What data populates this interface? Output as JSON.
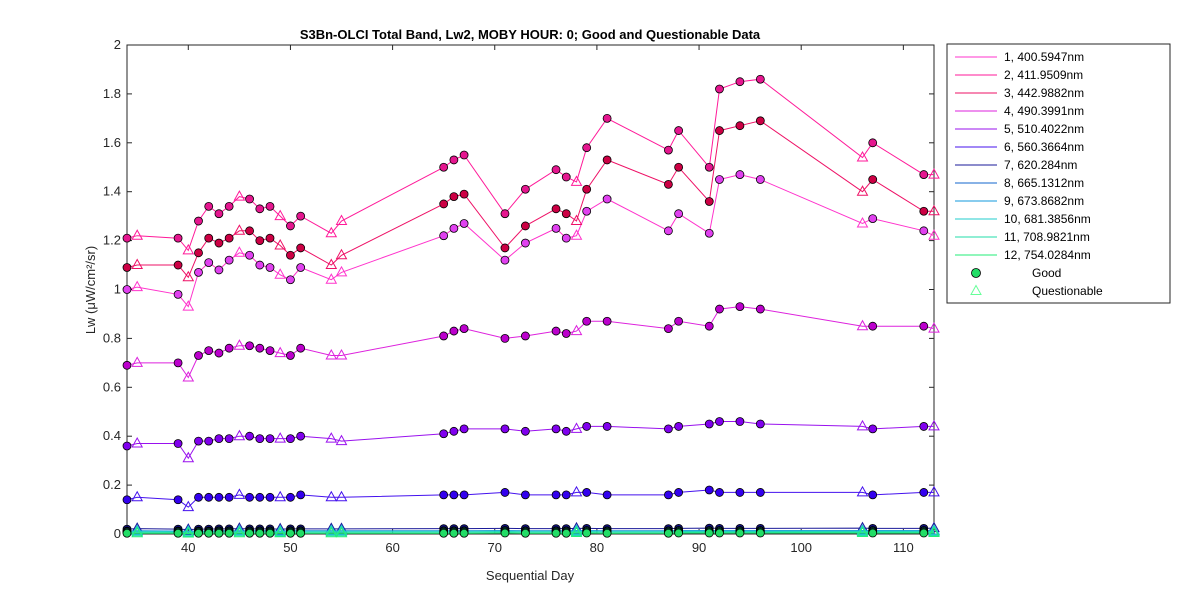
{
  "chart_data": {
    "type": "scatter",
    "title": "S3Bn-OLCI Total Band,  Lw2, MOBY HOUR: 0;  Good and Questionable Data",
    "xlabel": "Sequential Day",
    "ylabel": "Lw (μW/cm²/sr)",
    "xlim": [
      34,
      113
    ],
    "ylim": [
      0,
      2
    ],
    "xticks": [
      40,
      50,
      60,
      70,
      80,
      90,
      100,
      110
    ],
    "yticks": [
      0,
      0.2,
      0.4,
      0.6,
      0.8,
      1,
      1.2,
      1.4,
      1.6,
      1.8,
      2
    ],
    "xtick_labels": [
      "40",
      "50",
      "60",
      "70",
      "80",
      "90",
      "100",
      "110"
    ],
    "ytick_labels": [
      "0",
      "0.2",
      "0.4",
      "0.6",
      "0.8",
      "1",
      "1.2",
      "1.4",
      "1.6",
      "1.8",
      "2"
    ],
    "grid": false,
    "legend_position": "outside-right",
    "x": [
      34,
      35,
      39,
      40,
      41,
      42,
      43,
      44,
      45,
      46,
      47,
      48,
      49,
      50,
      51,
      54,
      55,
      65,
      66,
      67,
      71,
      73,
      76,
      77,
      78,
      79,
      81,
      87,
      88,
      91,
      92,
      94,
      96,
      106,
      107,
      112,
      113
    ],
    "questionable_mask": [
      0,
      1,
      0,
      1,
      0,
      0,
      0,
      0,
      1,
      0,
      0,
      0,
      1,
      0,
      0,
      1,
      1,
      0,
      0,
      0,
      0,
      0,
      0,
      0,
      1,
      0,
      0,
      0,
      0,
      0,
      0,
      0,
      0,
      1,
      0,
      0,
      1
    ],
    "series": [
      {
        "name": "1, 400.5947nm",
        "color": "#ff33cc",
        "fill": "#e040ef",
        "values": [
          1.0,
          1.01,
          0.98,
          0.93,
          1.07,
          1.11,
          1.08,
          1.12,
          1.15,
          1.14,
          1.1,
          1.09,
          1.06,
          1.04,
          1.09,
          1.04,
          1.07,
          1.22,
          1.25,
          1.27,
          1.12,
          1.19,
          1.25,
          1.21,
          1.22,
          1.32,
          1.37,
          1.24,
          1.31,
          1.23,
          1.45,
          1.47,
          1.45,
          1.27,
          1.29,
          1.24,
          1.22
        ]
      },
      {
        "name": "2, 411.9509nm",
        "color": "#ff1a99",
        "fill": "#e5168f",
        "values": [
          1.21,
          1.22,
          1.21,
          1.16,
          1.28,
          1.34,
          1.31,
          1.34,
          1.38,
          1.37,
          1.33,
          1.34,
          1.3,
          1.26,
          1.3,
          1.23,
          1.28,
          1.5,
          1.53,
          1.55,
          1.31,
          1.41,
          1.49,
          1.46,
          1.44,
          1.58,
          1.7,
          1.57,
          1.65,
          1.5,
          1.82,
          1.85,
          1.86,
          1.54,
          1.6,
          1.47,
          1.47
        ]
      },
      {
        "name": "3, 442.9882nm",
        "color": "#ee1166",
        "fill": "#cc0044",
        "values": [
          1.09,
          1.1,
          1.1,
          1.05,
          1.15,
          1.21,
          1.19,
          1.21,
          1.24,
          1.24,
          1.2,
          1.21,
          1.18,
          1.14,
          1.17,
          1.1,
          1.14,
          1.35,
          1.38,
          1.39,
          1.17,
          1.26,
          1.33,
          1.31,
          1.28,
          1.41,
          1.53,
          1.43,
          1.5,
          1.36,
          1.65,
          1.67,
          1.69,
          1.4,
          1.45,
          1.32,
          1.32
        ]
      },
      {
        "name": "4, 490.3991nm",
        "color": "#dd22dd",
        "fill": "#bb00cc",
        "values": [
          0.69,
          0.7,
          0.7,
          0.64,
          0.73,
          0.75,
          0.74,
          0.76,
          0.77,
          0.77,
          0.76,
          0.75,
          0.74,
          0.73,
          0.76,
          0.73,
          0.73,
          0.81,
          0.83,
          0.84,
          0.8,
          0.81,
          0.83,
          0.82,
          0.83,
          0.87,
          0.87,
          0.84,
          0.87,
          0.85,
          0.92,
          0.93,
          0.92,
          0.85,
          0.85,
          0.85,
          0.84
        ]
      },
      {
        "name": "5, 510.4022nm",
        "color": "#9911ee",
        "fill": "#8000ee",
        "values": [
          0.36,
          0.37,
          0.37,
          0.31,
          0.38,
          0.38,
          0.39,
          0.39,
          0.4,
          0.4,
          0.39,
          0.39,
          0.39,
          0.39,
          0.4,
          0.39,
          0.38,
          0.41,
          0.42,
          0.43,
          0.43,
          0.42,
          0.43,
          0.42,
          0.43,
          0.44,
          0.44,
          0.43,
          0.44,
          0.45,
          0.46,
          0.46,
          0.45,
          0.44,
          0.43,
          0.44,
          0.44
        ]
      },
      {
        "name": "6, 560.3664nm",
        "color": "#4411ee",
        "fill": "#3300ee",
        "values": [
          0.14,
          0.15,
          0.14,
          0.11,
          0.15,
          0.15,
          0.15,
          0.15,
          0.16,
          0.15,
          0.15,
          0.15,
          0.15,
          0.15,
          0.16,
          0.15,
          0.15,
          0.16,
          0.16,
          0.16,
          0.17,
          0.16,
          0.16,
          0.16,
          0.17,
          0.17,
          0.16,
          0.16,
          0.17,
          0.18,
          0.17,
          0.17,
          0.17,
          0.17,
          0.16,
          0.17,
          0.17
        ]
      },
      {
        "name": "7,  620.284nm",
        "color": "#1a1a99",
        "fill": "#111188",
        "values": [
          0.02,
          0.022,
          0.02,
          0.018,
          0.02,
          0.02,
          0.021,
          0.021,
          0.022,
          0.021,
          0.021,
          0.021,
          0.02,
          0.021,
          0.021,
          0.021,
          0.021,
          0.022,
          0.022,
          0.022,
          0.023,
          0.022,
          0.022,
          0.022,
          0.023,
          0.023,
          0.022,
          0.022,
          0.023,
          0.024,
          0.023,
          0.023,
          0.023,
          0.024,
          0.023,
          0.023,
          0.024
        ]
      },
      {
        "name": "8,  665.1312nm",
        "color": "#1166cc",
        "fill": "#1155bb",
        "values": [
          0.012,
          0.013,
          0.012,
          0.011,
          0.012,
          0.012,
          0.013,
          0.013,
          0.013,
          0.013,
          0.013,
          0.013,
          0.012,
          0.013,
          0.013,
          0.013,
          0.013,
          0.013,
          0.013,
          0.013,
          0.014,
          0.013,
          0.013,
          0.013,
          0.014,
          0.014,
          0.013,
          0.013,
          0.014,
          0.014,
          0.014,
          0.014,
          0.014,
          0.014,
          0.014,
          0.014,
          0.014
        ]
      },
      {
        "name": "9,  673.8682nm",
        "color": "#1199dd",
        "fill": "#1188cc",
        "values": [
          0.011,
          0.012,
          0.011,
          0.01,
          0.011,
          0.011,
          0.012,
          0.012,
          0.012,
          0.012,
          0.012,
          0.012,
          0.011,
          0.012,
          0.012,
          0.012,
          0.012,
          0.012,
          0.012,
          0.012,
          0.013,
          0.012,
          0.012,
          0.012,
          0.013,
          0.013,
          0.012,
          0.012,
          0.013,
          0.013,
          0.013,
          0.013,
          0.013,
          0.013,
          0.013,
          0.013,
          0.013
        ]
      },
      {
        "name": "10, 681.3856nm",
        "color": "#22cccc",
        "fill": "#11bbbb",
        "values": [
          0.01,
          0.011,
          0.01,
          0.009,
          0.01,
          0.01,
          0.011,
          0.011,
          0.011,
          0.011,
          0.011,
          0.011,
          0.01,
          0.011,
          0.011,
          0.011,
          0.011,
          0.011,
          0.011,
          0.011,
          0.012,
          0.011,
          0.011,
          0.011,
          0.012,
          0.012,
          0.011,
          0.011,
          0.012,
          0.012,
          0.012,
          0.012,
          0.012,
          0.012,
          0.012,
          0.012,
          0.012
        ]
      },
      {
        "name": "11, 708.9821nm",
        "color": "#22ddaa",
        "fill": "#11cc99",
        "values": [
          0.006,
          0.007,
          0.006,
          0.005,
          0.006,
          0.006,
          0.007,
          0.007,
          0.007,
          0.007,
          0.007,
          0.007,
          0.006,
          0.007,
          0.007,
          0.007,
          0.007,
          0.007,
          0.007,
          0.007,
          0.008,
          0.007,
          0.007,
          0.007,
          0.008,
          0.008,
          0.007,
          0.007,
          0.008,
          0.008,
          0.008,
          0.008,
          0.008,
          0.008,
          0.008,
          0.008,
          0.008
        ]
      },
      {
        "name": "12, 754.0284nm",
        "color": "#22ee77",
        "fill": "#22dd66",
        "values": [
          0.003,
          0.003,
          0.003,
          0.002,
          0.003,
          0.003,
          0.003,
          0.003,
          0.003,
          0.003,
          0.003,
          0.003,
          0.003,
          0.003,
          0.003,
          0.003,
          0.003,
          0.003,
          0.003,
          0.003,
          0.004,
          0.003,
          0.003,
          0.003,
          0.004,
          0.004,
          0.003,
          0.003,
          0.004,
          0.004,
          0.004,
          0.004,
          0.004,
          0.004,
          0.004,
          0.004,
          0.004
        ]
      }
    ],
    "marker_legend": [
      {
        "name": "Good",
        "marker": "circle",
        "fill": "#22dd66",
        "stroke": "#000000"
      },
      {
        "name": "Questionable",
        "marker": "triangle",
        "fill": "none",
        "stroke": "#66ff99"
      }
    ]
  }
}
